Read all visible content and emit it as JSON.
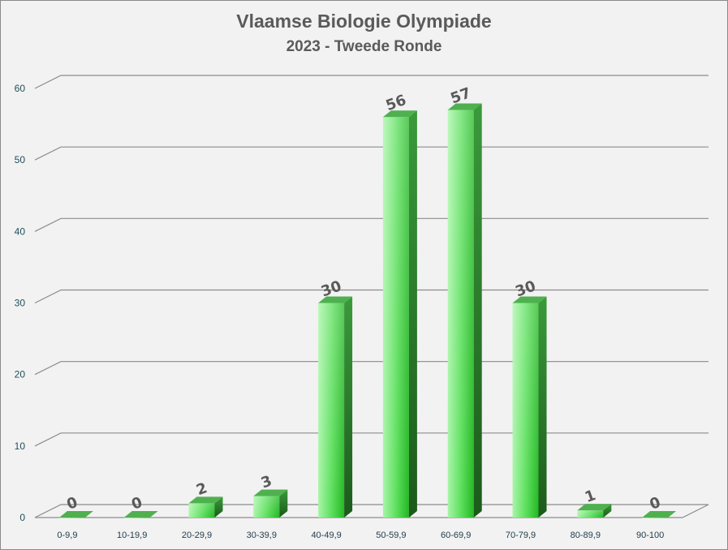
{
  "chart_data": {
    "type": "bar",
    "title": "Vlaamse Biologie Olympiade",
    "subtitle": "2023 - Tweede Ronde",
    "categories": [
      "0-9,9",
      "10-19,9",
      "20-29,9",
      "30-39,9",
      "40-49,9",
      "50-59,9",
      "60-69,9",
      "70-79,9",
      "80-89,9",
      "90-100"
    ],
    "values": [
      0,
      0,
      2,
      3,
      30,
      56,
      57,
      30,
      1,
      0
    ],
    "data_labels": [
      "0",
      "0",
      "2",
      "3",
      "30",
      "56",
      "57",
      "30",
      "1",
      "0"
    ],
    "yticks": [
      "0",
      "10",
      "20",
      "30",
      "40",
      "50",
      "60"
    ],
    "ylim": [
      0,
      60
    ],
    "grid": true,
    "bar_color": "#33cc33"
  }
}
